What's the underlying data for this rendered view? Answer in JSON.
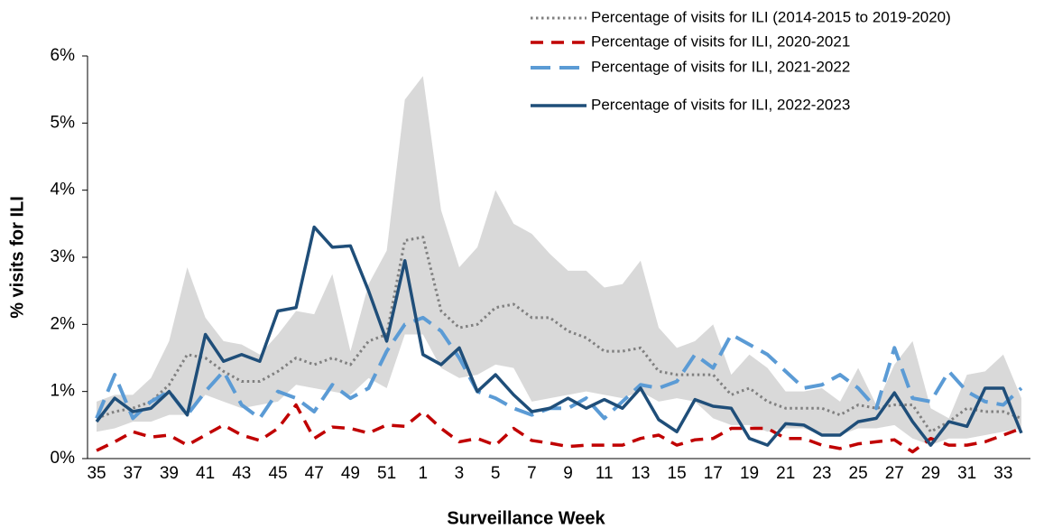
{
  "chart_data": {
    "type": "line",
    "xlabel": "Surveillance Week",
    "ylabel": "% visits for ILI",
    "categories": [
      "35",
      null,
      "37",
      null,
      "39",
      null,
      "41",
      null,
      "43",
      null,
      "45",
      null,
      "47",
      null,
      "49",
      null,
      "51",
      null,
      "1",
      null,
      "3",
      null,
      "5",
      null,
      "7",
      null,
      "9",
      null,
      "11",
      null,
      "13",
      null,
      "15",
      null,
      "17",
      null,
      "19",
      null,
      "21",
      null,
      "23",
      null,
      "25",
      null,
      "27",
      null,
      "29",
      null,
      "31",
      null,
      "33",
      null
    ],
    "ylim": [
      0,
      6
    ],
    "yticks": [
      {
        "value": 0,
        "label": "0%"
      },
      {
        "value": 1,
        "label": "1%"
      },
      {
        "value": 2,
        "label": "2%"
      },
      {
        "value": 3,
        "label": "3%"
      },
      {
        "value": 4,
        "label": "4%"
      },
      {
        "value": 5,
        "label": "5%"
      },
      {
        "value": 6,
        "label": "6%"
      }
    ],
    "band": {
      "color": "#d9d9d9",
      "high": [
        0.85,
        0.95,
        0.95,
        1.2,
        1.75,
        2.85,
        2.1,
        1.75,
        1.7,
        1.55,
        1.85,
        2.2,
        2.15,
        2.75,
        1.6,
        2.6,
        3.1,
        5.35,
        5.7,
        3.7,
        2.85,
        3.15,
        4.0,
        3.5,
        3.35,
        3.05,
        2.8,
        2.8,
        2.55,
        2.6,
        2.95,
        1.95,
        1.65,
        1.75,
        2.0,
        1.25,
        1.55,
        1.35,
        1.0,
        1.0,
        1.05,
        0.85,
        1.35,
        0.8,
        1.4,
        1.75,
        0.75,
        0.6,
        1.25,
        1.3,
        1.55,
        0.9
      ],
      "low": [
        0.4,
        0.45,
        0.55,
        0.55,
        0.65,
        0.65,
        0.95,
        0.85,
        0.75,
        0.8,
        0.85,
        1.1,
        1.05,
        1.0,
        0.95,
        1.2,
        1.05,
        1.85,
        1.85,
        1.35,
        1.2,
        1.25,
        1.4,
        1.35,
        0.85,
        0.9,
        0.95,
        1.0,
        0.95,
        0.9,
        1.0,
        0.85,
        0.9,
        0.85,
        0.6,
        0.5,
        0.5,
        0.4,
        0.45,
        0.45,
        0.35,
        0.35,
        0.45,
        0.45,
        0.5,
        0.3,
        0.2,
        0.3,
        0.3,
        0.35,
        0.4,
        0.45
      ]
    },
    "series": [
      {
        "name": "Percentage of visits for ILI (2014-2015 to 2019-2020)",
        "color": "#808080",
        "dash": "dotted",
        "values": [
          0.6,
          0.7,
          0.75,
          0.85,
          1.1,
          1.55,
          1.5,
          1.3,
          1.15,
          1.15,
          1.3,
          1.5,
          1.4,
          1.5,
          1.4,
          1.75,
          1.85,
          3.25,
          3.3,
          2.2,
          1.95,
          2.0,
          2.25,
          2.3,
          2.1,
          2.1,
          1.9,
          1.8,
          1.6,
          1.6,
          1.65,
          1.3,
          1.25,
          1.25,
          1.25,
          0.95,
          1.05,
          0.85,
          0.75,
          0.75,
          0.75,
          0.65,
          0.8,
          0.75,
          0.8,
          0.8,
          0.4,
          0.55,
          0.75,
          0.7,
          0.7,
          0.6
        ]
      },
      {
        "name": "Percentage of visits for ILI, 2020-2021",
        "color": "#c00000",
        "dash": "dashed",
        "values": [
          0.12,
          0.25,
          0.4,
          0.32,
          0.35,
          0.2,
          0.35,
          0.5,
          0.35,
          0.27,
          0.45,
          0.8,
          0.3,
          0.47,
          0.45,
          0.38,
          0.5,
          0.48,
          0.7,
          0.45,
          0.25,
          0.3,
          0.2,
          0.45,
          0.27,
          0.23,
          0.18,
          0.2,
          0.2,
          0.2,
          0.3,
          0.35,
          0.2,
          0.28,
          0.3,
          0.45,
          0.45,
          0.45,
          0.3,
          0.3,
          0.2,
          0.15,
          0.22,
          0.25,
          0.28,
          0.1,
          0.3,
          0.2,
          0.2,
          0.25,
          0.35,
          0.45
        ]
      },
      {
        "name": "Percentage of visits for ILI, 2021-2022",
        "color": "#5b9bd5",
        "dash": "long-dashed",
        "values": [
          0.6,
          1.25,
          0.6,
          0.85,
          1.0,
          0.65,
          1.0,
          1.3,
          0.8,
          0.6,
          1.0,
          0.9,
          0.7,
          1.1,
          0.9,
          1.05,
          1.6,
          2.0,
          2.1,
          1.9,
          1.5,
          1.0,
          0.9,
          0.75,
          0.65,
          0.75,
          0.75,
          0.9,
          0.6,
          0.85,
          1.1,
          1.05,
          1.15,
          1.55,
          1.35,
          1.85,
          1.7,
          1.55,
          1.3,
          1.05,
          1.1,
          1.25,
          1.05,
          0.75,
          1.65,
          0.9,
          0.85,
          1.3,
          1.0,
          0.85,
          0.8,
          1.05
        ]
      },
      {
        "name": "Percentage of visits for ILI, 2022-2023",
        "color": "#1f4e79",
        "dash": "solid",
        "values": [
          0.55,
          0.9,
          0.7,
          0.75,
          1.0,
          0.65,
          1.85,
          1.45,
          1.55,
          1.45,
          2.2,
          2.25,
          3.45,
          3.15,
          3.17,
          2.5,
          1.75,
          2.95,
          1.55,
          1.4,
          1.65,
          1.0,
          1.25,
          0.95,
          0.7,
          0.75,
          0.9,
          0.75,
          0.88,
          0.75,
          1.05,
          0.58,
          0.4,
          0.88,
          0.78,
          0.75,
          0.3,
          0.2,
          0.52,
          0.5,
          0.35,
          0.35,
          0.55,
          0.6,
          0.98,
          0.55,
          0.2,
          0.55,
          0.48,
          1.05,
          1.05,
          0.38
        ]
      }
    ],
    "legend": "top-right"
  }
}
